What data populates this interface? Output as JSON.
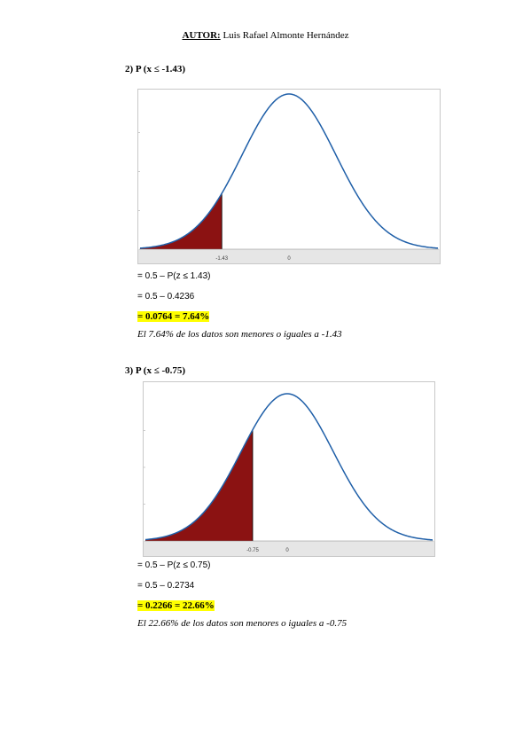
{
  "header": {
    "author_label": "AUTOR:",
    "author_name": "Luis Rafael Almonte Hernández"
  },
  "sections": [
    {
      "heading": "2)  P (x ≤ -1.43)",
      "chart": {
        "cutoff": -1.43,
        "tick_cutoff": "-1.43",
        "tick_zero": "0",
        "shade_color": "#8b1212",
        "curve_color": "#1f5fa8"
      },
      "steps": [
        "= 0.5 – P(z ≤ 1.43)",
        "= 0.5 – 0.4236"
      ],
      "result": "= 0.0764 = 7.64%",
      "conclusion": "El 7.64% de los datos son menores o iguales a -1.43"
    },
    {
      "heading": "3)  P (x ≤ -0.75)",
      "chart": {
        "cutoff": -0.75,
        "tick_cutoff": "-0.75",
        "tick_zero": "0",
        "shade_color": "#8b1212",
        "curve_color": "#1f5fa8"
      },
      "steps": [
        "= 0.5 – P(z ≤ 0.75)",
        "= 0.5 – 0.2734"
      ],
      "result": "= 0.2266 = 22.66%",
      "conclusion": "El 22.66% de los datos son menores o iguales a -0.75"
    }
  ]
}
